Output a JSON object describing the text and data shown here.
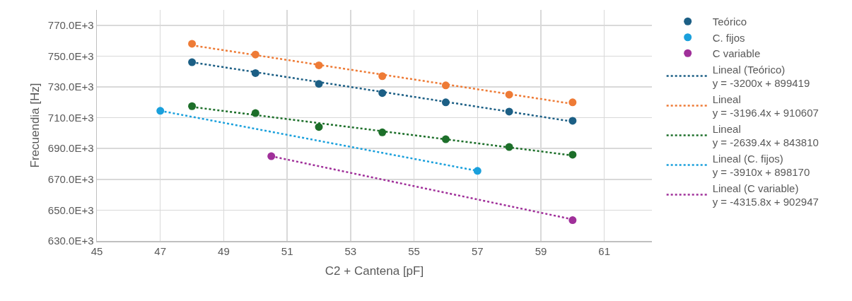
{
  "chart_data": {
    "type": "scatter",
    "xlabel": "C2 + Cantena [pF]",
    "ylabel": "Frecuendia [Hz]",
    "xlim": [
      45,
      62.5
    ],
    "xticks": [
      45,
      47,
      49,
      51,
      53,
      55,
      57,
      59,
      61
    ],
    "ylim": [
      630000,
      780000
    ],
    "yticks": [
      {
        "value": 630000,
        "label": "630.0E+3"
      },
      {
        "value": 650000,
        "label": "650.0E+3"
      },
      {
        "value": 670000,
        "label": "670.0E+3"
      },
      {
        "value": 690000,
        "label": "690.0E+3"
      },
      {
        "value": 710000,
        "label": "710.0E+3"
      },
      {
        "value": 730000,
        "label": "730.0E+3"
      },
      {
        "value": 750000,
        "label": "750.0E+3"
      },
      {
        "value": 770000,
        "label": "770.0E+3"
      }
    ],
    "grid": true,
    "legend": "right",
    "marker": "circle",
    "series": [
      {
        "name": "Teórico",
        "color": "#1c5f85",
        "x": [
          48,
          50,
          52,
          54,
          56,
          58,
          60
        ],
        "values": [
          746000,
          739000,
          732000,
          726000,
          720000,
          714000,
          708000
        ]
      },
      {
        "color": "#ee7b36",
        "x": [
          48,
          50,
          52,
          54,
          56,
          58,
          60
        ],
        "values": [
          758000,
          751000,
          744000,
          737000,
          731000,
          725000,
          720000
        ]
      },
      {
        "color": "#1d6f2a",
        "x": [
          48,
          50,
          52,
          54,
          56,
          58,
          60
        ],
        "values": [
          717500,
          713000,
          704000,
          700500,
          696000,
          691000,
          686000
        ]
      },
      {
        "name": "C. fijos",
        "color": "#1aa0dc",
        "x": [
          47,
          57
        ],
        "values": [
          714500,
          675500
        ]
      },
      {
        "name": "C variable",
        "color": "#a0309a",
        "x": [
          50.5,
          60
        ],
        "values": [
          685000,
          643500
        ]
      },
      {
        "type": "line",
        "name": "Lineal (Teórico)\ny = -3200x + 899419",
        "color": "#1c5f85",
        "marker": "none",
        "line_style": "dotted",
        "x": [
          48,
          60
        ],
        "values": [
          746000,
          707500
        ]
      },
      {
        "type": "line",
        "name": "Lineal\ny = -3196.4x + 910607",
        "color": "#ee7b36",
        "marker": "none",
        "line_style": "dotted",
        "x": [
          48,
          60
        ],
        "values": [
          757000,
          719000
        ]
      },
      {
        "type": "line",
        "name": "Lineal\ny = -2639.4x + 843810",
        "color": "#1d6f2a",
        "marker": "none",
        "line_style": "dotted",
        "x": [
          48,
          60
        ],
        "values": [
          717000,
          685500
        ]
      },
      {
        "type": "line",
        "name": "Lineal (C. fijos)\ny = -3910x + 898170",
        "color": "#1aa0dc",
        "marker": "none",
        "line_style": "dotted",
        "x": [
          47,
          57
        ],
        "values": [
          714500,
          675500
        ]
      },
      {
        "type": "line",
        "name": "Lineal (C variable)\ny = -4315.8x + 902947",
        "color": "#a0309a",
        "marker": "none",
        "line_style": "dotted",
        "x": [
          50.5,
          60
        ],
        "values": [
          685000,
          644000
        ]
      }
    ]
  }
}
